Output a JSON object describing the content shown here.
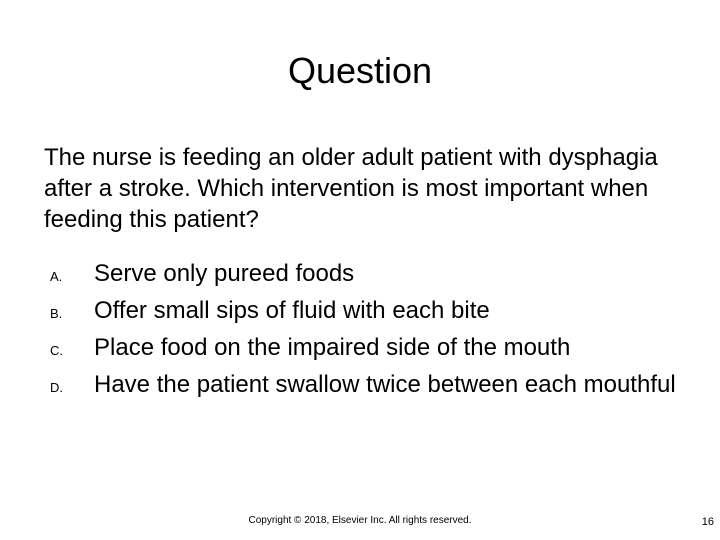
{
  "title": "Question",
  "question": "The nurse is feeding an older adult patient with dysphagia after a stroke. Which intervention is most important when feeding this patient?",
  "options": [
    {
      "letter": "A.",
      "text": "Serve only pureed foods"
    },
    {
      "letter": "B.",
      "text": "Offer small sips of fluid with each bite"
    },
    {
      "letter": "C.",
      "text": "Place food on the impaired side of the mouth"
    },
    {
      "letter": "D.",
      "text": "Have the patient swallow twice between each mouthful"
    }
  ],
  "copyright": "Copyright © 2018, Elsevier Inc. All rights reserved.",
  "page_number": "16",
  "colors": {
    "background": "#ffffff",
    "text": "#000000"
  },
  "typography": {
    "title_fontsize": 36,
    "body_fontsize": 24,
    "option_letter_fontsize": 13,
    "copyright_fontsize": 10,
    "page_number_fontsize": 11,
    "font_family": "Arial"
  }
}
